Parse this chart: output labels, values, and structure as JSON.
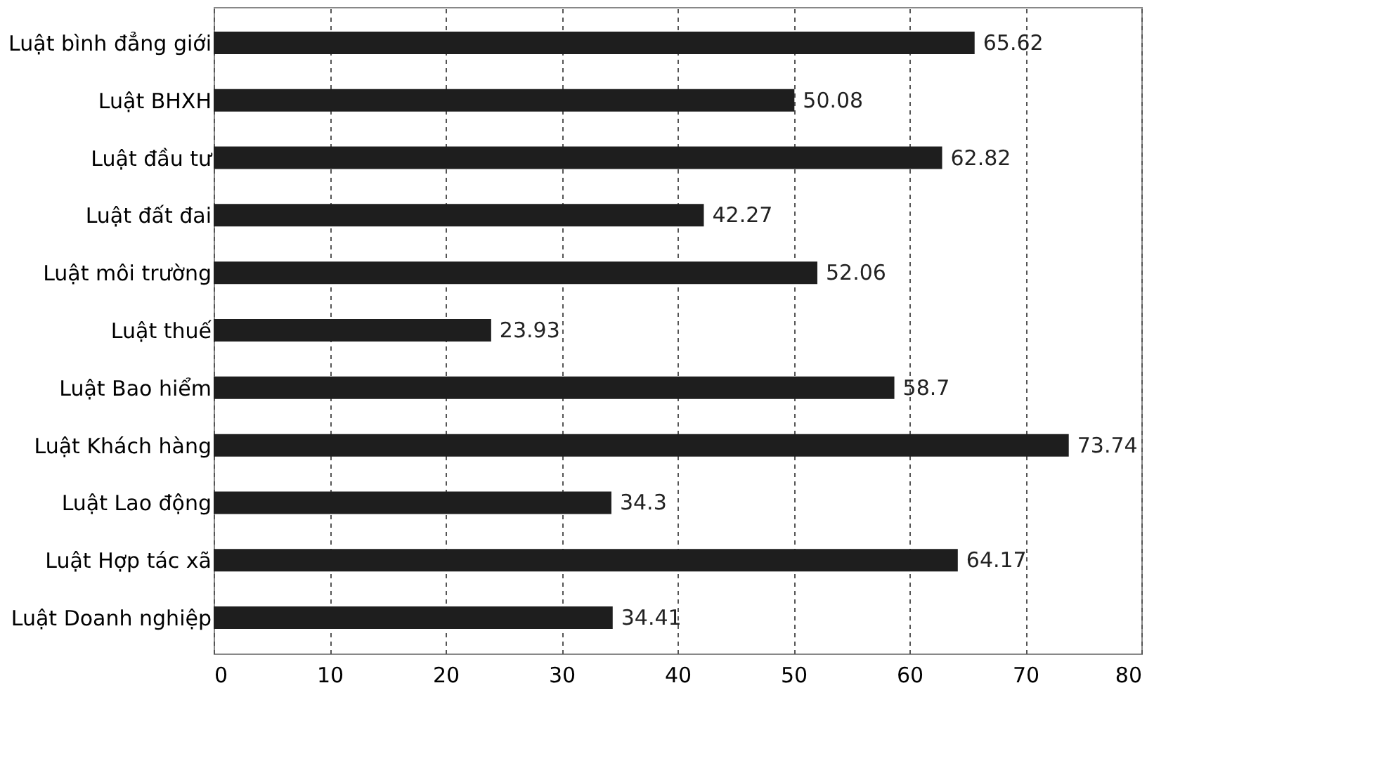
{
  "chart_data": {
    "type": "bar",
    "orientation": "horizontal",
    "categories": [
      "Luật bình đẳng giới",
      "Luật BHXH",
      "Luật đầu tư",
      "Luật đất đai",
      "Luật môi trường",
      "Luật thuế",
      "Luật Bao hiểm",
      "Luật Khách hàng",
      "Luật Lao động",
      "Luật Hợp tác xã",
      "Luật Doanh nghiệp"
    ],
    "values": [
      65.62,
      50.08,
      62.82,
      42.27,
      52.06,
      23.93,
      58.7,
      73.74,
      34.3,
      64.17,
      34.41
    ],
    "color": "#1e1e1e",
    "xlim": [
      0,
      80
    ],
    "xticks": [
      0,
      10,
      20,
      30,
      40,
      50,
      60,
      70,
      80
    ],
    "grid": "x",
    "data_labels": true
  }
}
